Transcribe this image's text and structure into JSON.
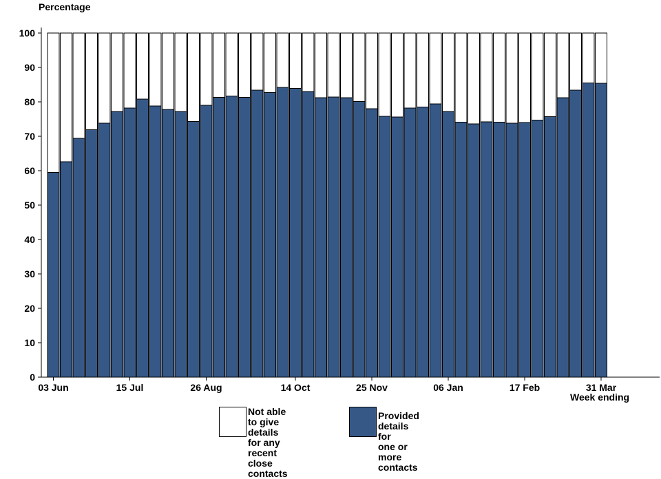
{
  "chart_data": {
    "type": "bar",
    "stacked": true,
    "ylabel": "Percentage",
    "xlabel": "Week ending",
    "ylim": [
      0,
      100
    ],
    "yticks": [
      0,
      10,
      20,
      30,
      40,
      50,
      60,
      70,
      80,
      90,
      100
    ],
    "xtick_labels": [
      {
        "index": 0,
        "label": "03 Jun"
      },
      {
        "index": 6,
        "label": "15 Jul"
      },
      {
        "index": 12,
        "label": "26 Aug"
      },
      {
        "index": 19,
        "label": "14 Oct"
      },
      {
        "index": 25,
        "label": "25 Nov"
      },
      {
        "index": 31,
        "label": "06 Jan"
      },
      {
        "index": 37,
        "label": "17 Feb"
      },
      {
        "index": 43,
        "label": "31 Mar"
      }
    ],
    "series": [
      {
        "name": "Provided details for\n one or more contacts",
        "color": "#355887",
        "values": [
          59.5,
          62.6,
          69.4,
          71.9,
          73.8,
          77.2,
          78.2,
          80.8,
          78.8,
          77.8,
          77.2,
          74.3,
          79.0,
          81.3,
          81.7,
          81.3,
          83.4,
          82.7,
          84.2,
          83.9,
          83.0,
          81.2,
          81.4,
          81.2,
          80.1,
          78.0,
          75.8,
          75.6,
          78.2,
          78.5,
          79.4,
          77.2,
          74.1,
          73.6,
          74.2,
          74.1,
          73.8,
          74.0,
          74.7,
          75.7,
          81.2,
          83.4,
          85.5,
          85.4
        ]
      },
      {
        "name": "Not able to give\n details for any recent\n close contacts",
        "color": "#ffffff",
        "values": [
          40.5,
          37.4,
          30.6,
          28.1,
          26.2,
          22.8,
          21.8,
          19.2,
          21.2,
          22.2,
          22.8,
          25.7,
          21.0,
          18.7,
          18.3,
          18.7,
          16.6,
          17.3,
          15.8,
          16.1,
          17.0,
          18.8,
          18.6,
          18.8,
          19.9,
          22.0,
          24.2,
          24.4,
          21.8,
          21.5,
          20.6,
          22.8,
          25.9,
          26.4,
          25.8,
          25.9,
          26.2,
          26.0,
          25.3,
          24.3,
          18.8,
          16.6,
          14.5,
          14.6
        ]
      }
    ],
    "legend": [
      {
        "label": "Not able to give\n details for any recent\n close contacts",
        "color": "#ffffff"
      },
      {
        "label": "Provided details for\n one or more contacts",
        "color": "#355887"
      }
    ]
  }
}
